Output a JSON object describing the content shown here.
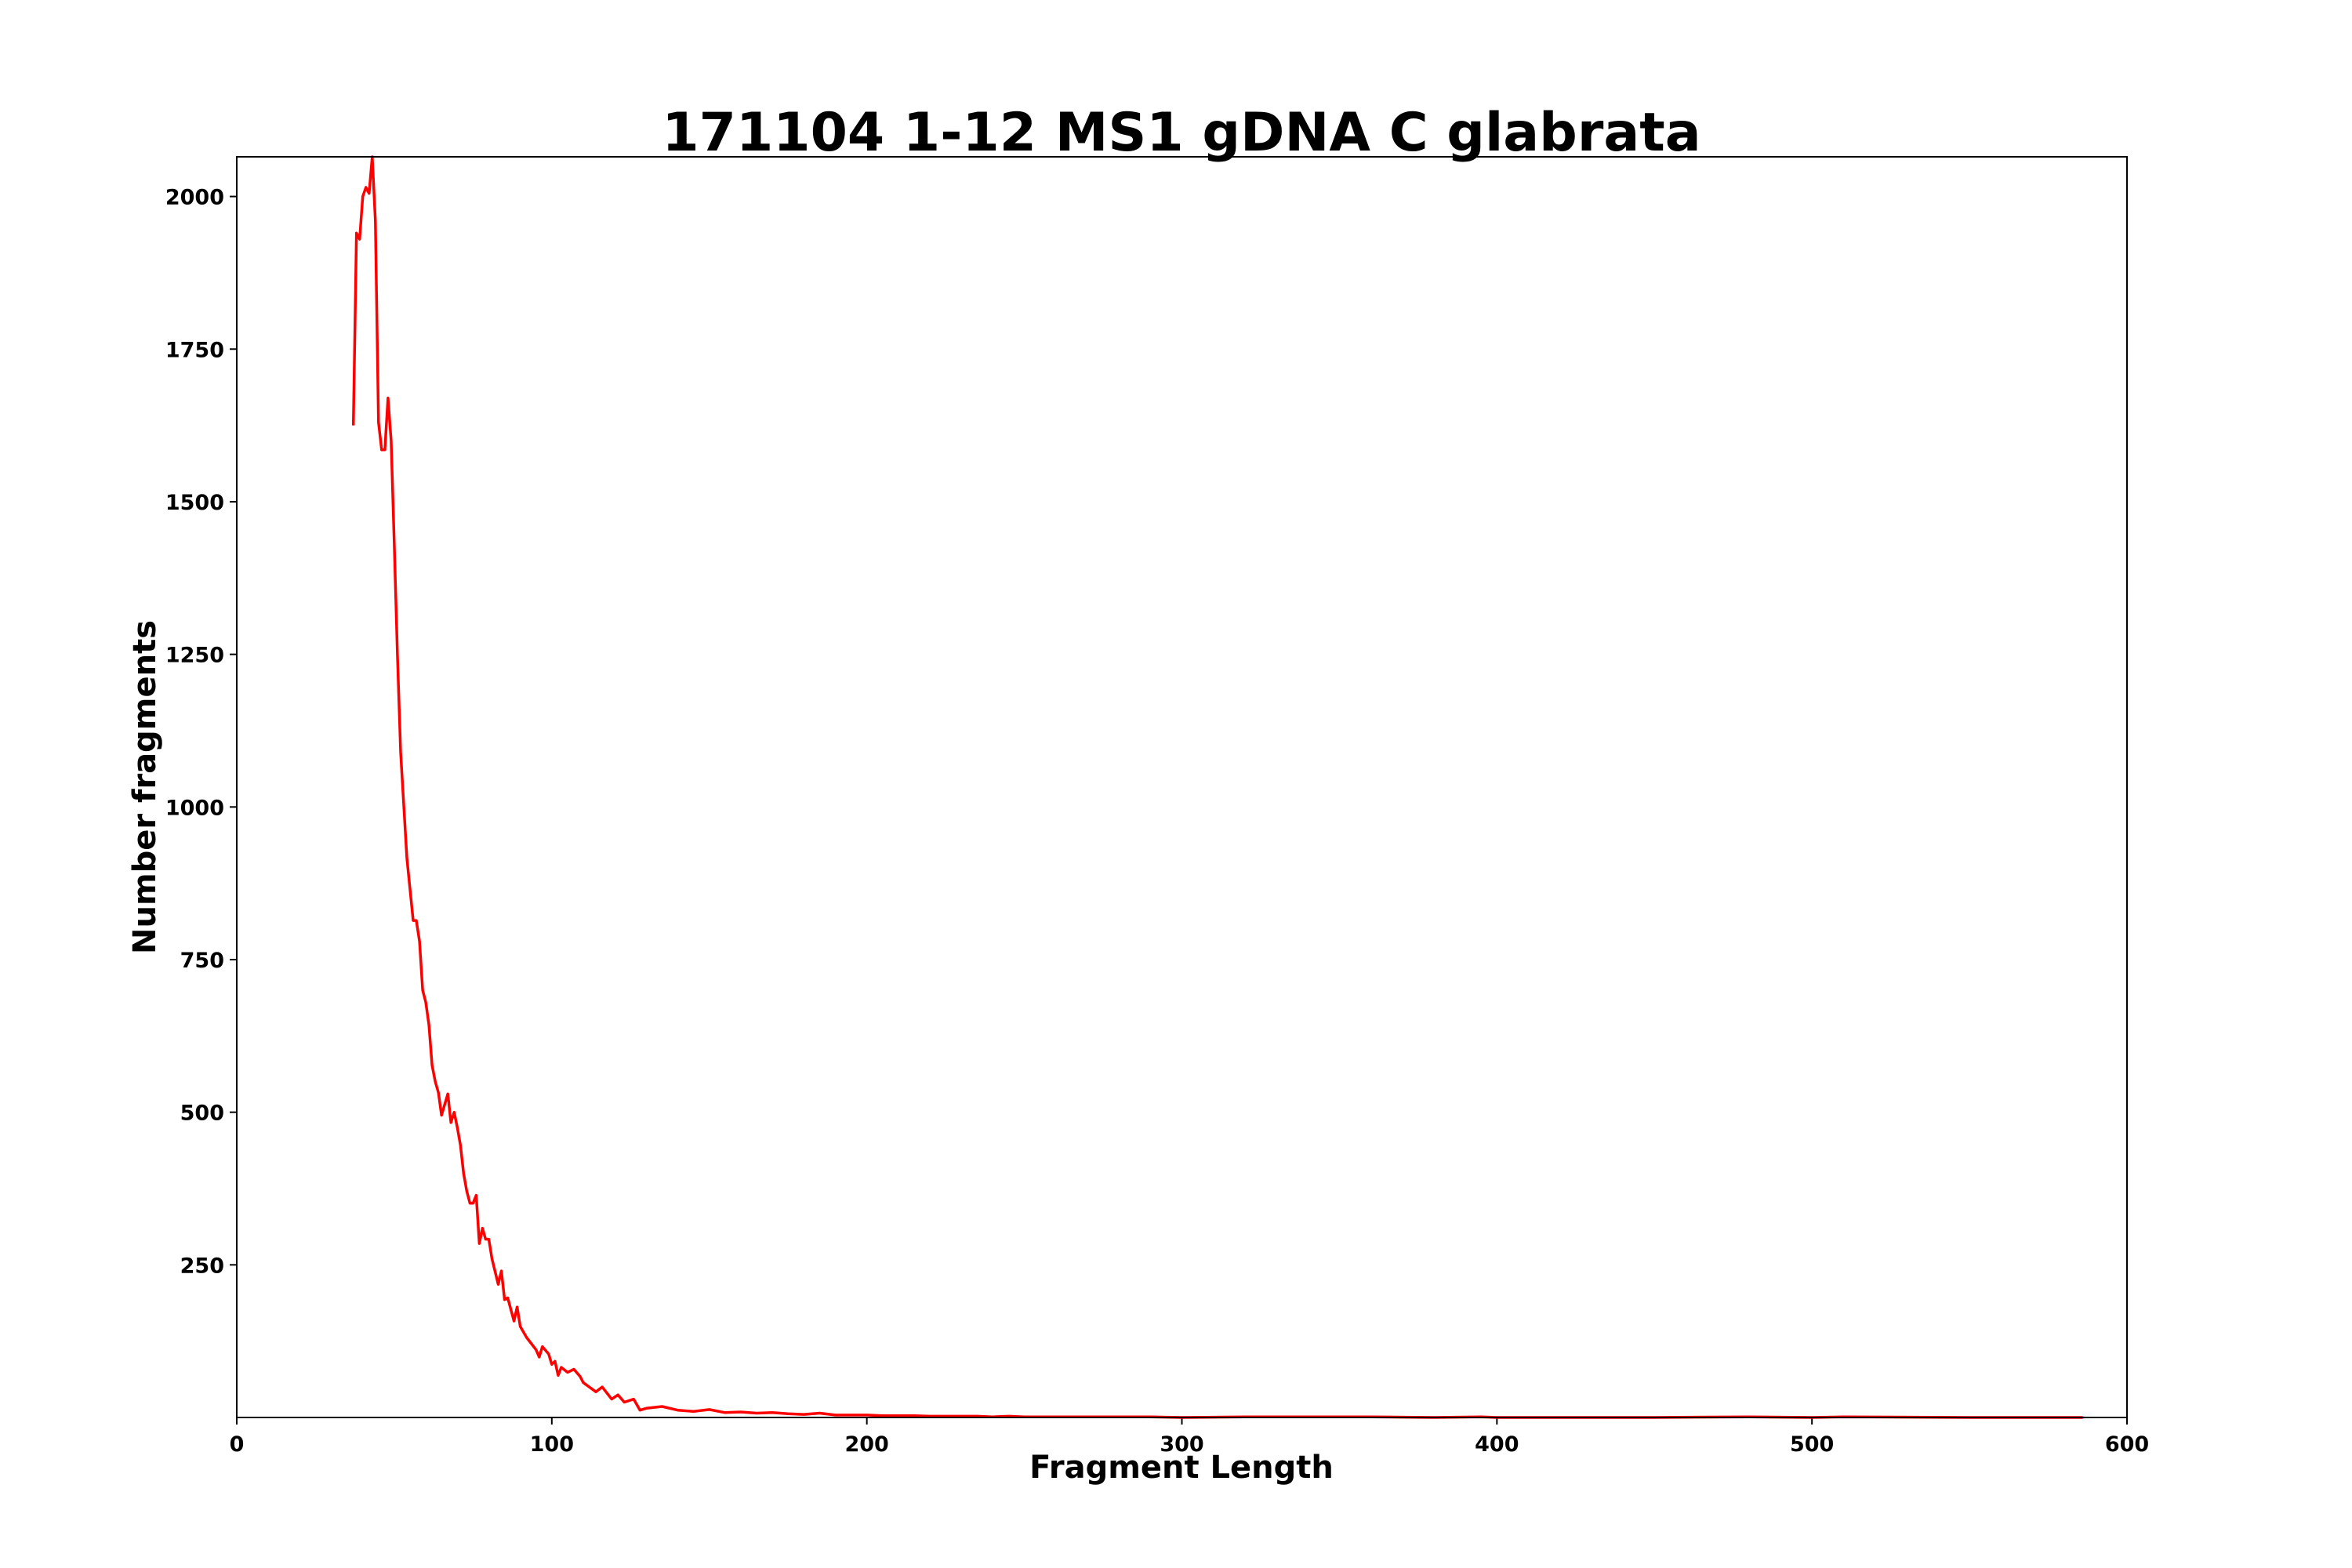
{
  "chart_data": {
    "type": "line",
    "title": "171104 1-12 MS1 gDNA C glabrata",
    "xlabel": "Fragment Length",
    "ylabel": "Number fragments",
    "xlim": [
      0,
      600
    ],
    "ylim": [
      0,
      2065
    ],
    "xticks": [
      "0",
      "100",
      "200",
      "300",
      "400",
      "500",
      "600"
    ],
    "yticks": [
      "250",
      "500",
      "750",
      "1000",
      "1250",
      "1500",
      "1750",
      "2000"
    ],
    "grid": false,
    "line_color": "#ff0000",
    "series": [
      {
        "x": [
          37,
          38,
          39,
          40,
          41,
          42,
          43,
          44,
          45,
          46,
          47,
          48,
          49,
          50,
          51,
          52,
          54,
          56,
          57,
          58,
          59,
          60,
          61,
          62,
          63,
          64,
          65,
          67,
          68,
          69,
          70,
          71,
          72,
          73,
          74,
          75,
          76,
          77,
          78,
          79,
          80,
          81,
          83,
          84,
          85,
          86,
          88,
          89,
          90,
          92,
          95,
          96,
          97,
          99,
          100,
          101,
          102,
          103,
          105,
          107,
          109,
          110,
          114,
          116,
          119,
          121,
          123,
          126,
          128,
          130,
          135,
          140,
          145,
          150,
          155,
          160,
          165,
          170,
          175,
          180,
          185,
          190,
          195,
          200,
          205,
          210,
          215,
          220,
          225,
          230,
          235,
          240,
          245,
          250,
          260,
          270,
          280,
          290,
          300,
          320,
          340,
          360,
          380,
          395,
          400,
          420,
          450,
          480,
          500,
          510,
          550,
          586
        ],
        "y": [
          1625,
          1940,
          1930,
          2000,
          2015,
          2005,
          2065,
          1960,
          1630,
          1585,
          1585,
          1670,
          1600,
          1430,
          1250,
          1090,
          916,
          814,
          814,
          780,
          700,
          680,
          643,
          577,
          550,
          532,
          495,
          530,
          483,
          500,
          475,
          446,
          400,
          371,
          351,
          351,
          364,
          285,
          310,
          292,
          292,
          260,
          218,
          240,
          193,
          196,
          158,
          181,
          149,
          131,
          111,
          99,
          116,
          104,
          87,
          92,
          69,
          82,
          74,
          79,
          67,
          57,
          42,
          50,
          30,
          37,
          25,
          30,
          12,
          15,
          18,
          12,
          10,
          13,
          8,
          9,
          7,
          8,
          6,
          5,
          7,
          4,
          4,
          4,
          3,
          3,
          3,
          2,
          2,
          2,
          2,
          1,
          2,
          1,
          1,
          1,
          1,
          1,
          0,
          1,
          1,
          1,
          0,
          1,
          0,
          0,
          0,
          1,
          0,
          1,
          0,
          0
        ]
      }
    ]
  }
}
